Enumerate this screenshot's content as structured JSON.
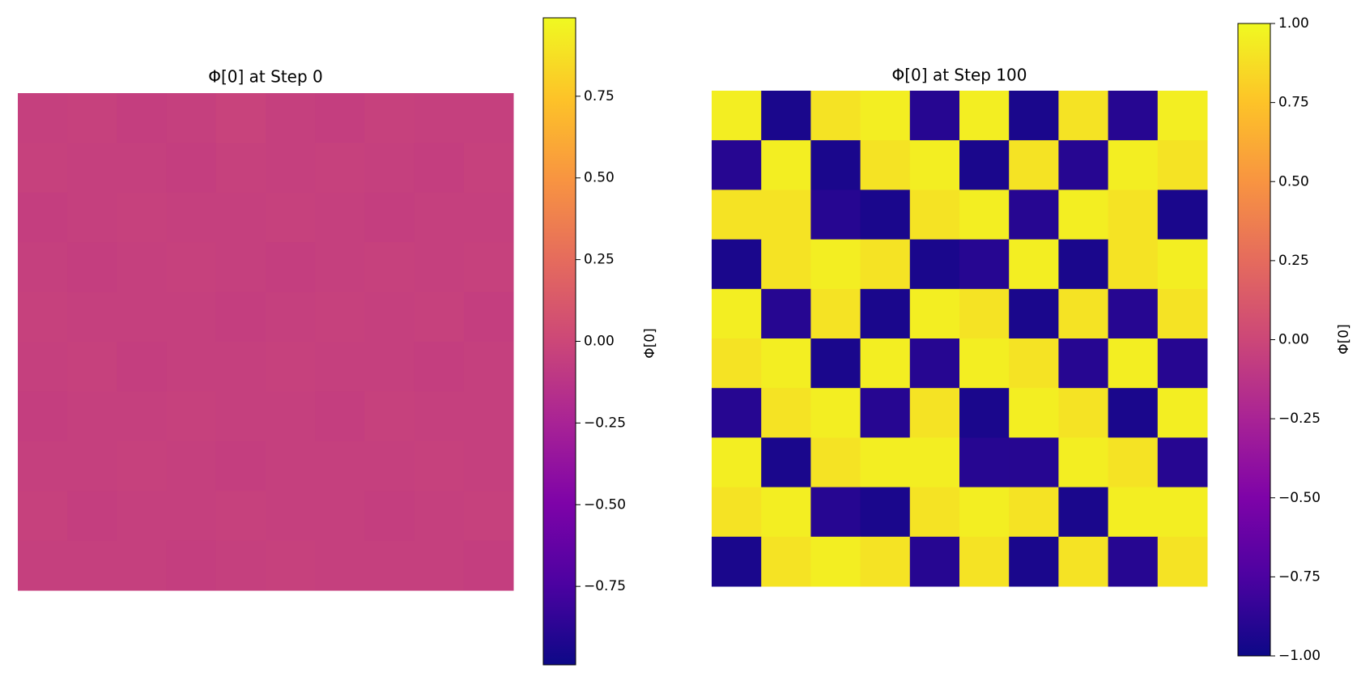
{
  "chart_data": [
    {
      "type": "heatmap",
      "title": "Φ[0] at Step 0",
      "colorbar_label": "Φ[0]",
      "colormap": "plasma",
      "clim": [
        -0.99,
        0.99
      ],
      "cticks": [
        {
          "value": -0.75,
          "label": "−0.75"
        },
        {
          "value": -0.5,
          "label": "−0.50"
        },
        {
          "value": -0.25,
          "label": "−0.25"
        },
        {
          "value": 0,
          "label": "0.00"
        },
        {
          "value": 0.25,
          "label": "0.25"
        },
        {
          "value": 0.5,
          "label": "0.50"
        },
        {
          "value": 0.75,
          "label": "0.75"
        }
      ],
      "z": [
        [
          -0.05,
          -0.04,
          -0.06,
          -0.05,
          -0.03,
          -0.05,
          -0.06,
          -0.04,
          -0.05,
          -0.05
        ],
        [
          -0.04,
          -0.05,
          -0.05,
          -0.06,
          -0.04,
          -0.05,
          -0.04,
          -0.05,
          -0.06,
          -0.04
        ],
        [
          -0.06,
          -0.05,
          -0.04,
          -0.05,
          -0.05,
          -0.04,
          -0.05,
          -0.06,
          -0.05,
          -0.05
        ],
        [
          -0.05,
          -0.06,
          -0.05,
          -0.04,
          -0.05,
          -0.06,
          -0.05,
          -0.04,
          -0.05,
          -0.04
        ],
        [
          -0.04,
          -0.05,
          -0.05,
          -0.05,
          -0.06,
          -0.05,
          -0.04,
          -0.05,
          -0.04,
          -0.06
        ],
        [
          -0.05,
          -0.04,
          -0.06,
          -0.05,
          -0.05,
          -0.04,
          -0.05,
          -0.05,
          -0.06,
          -0.05
        ],
        [
          -0.06,
          -0.05,
          -0.05,
          -0.04,
          -0.05,
          -0.05,
          -0.06,
          -0.04,
          -0.05,
          -0.05
        ],
        [
          -0.05,
          -0.05,
          -0.04,
          -0.05,
          -0.06,
          -0.05,
          -0.05,
          -0.05,
          -0.04,
          -0.05
        ],
        [
          -0.04,
          -0.06,
          -0.05,
          -0.05,
          -0.04,
          -0.05,
          -0.05,
          -0.06,
          -0.05,
          -0.04
        ],
        [
          -0.05,
          -0.05,
          -0.05,
          -0.06,
          -0.05,
          -0.04,
          -0.05,
          -0.05,
          -0.05,
          -0.06
        ]
      ]
    },
    {
      "type": "heatmap",
      "title": "Φ[0] at Step 100",
      "colorbar_label": "Φ[0]",
      "colormap": "plasma",
      "clim": [
        -1,
        1
      ],
      "cticks": [
        {
          "value": -1,
          "label": "−1.00"
        },
        {
          "value": -0.75,
          "label": "−0.75"
        },
        {
          "value": -0.5,
          "label": "−0.50"
        },
        {
          "value": -0.25,
          "label": "−0.25"
        },
        {
          "value": 0,
          "label": "0.00"
        },
        {
          "value": 0.25,
          "label": "0.25"
        },
        {
          "value": 0.5,
          "label": "0.50"
        },
        {
          "value": 0.75,
          "label": "0.75"
        },
        {
          "value": 1,
          "label": "1.00"
        }
      ],
      "z": [
        [
          0.95,
          -0.95,
          0.9,
          0.95,
          -0.9,
          0.95,
          -0.95,
          0.9,
          -0.9,
          0.95
        ],
        [
          -0.9,
          0.95,
          -0.95,
          0.9,
          0.95,
          -0.95,
          0.9,
          -0.9,
          0.95,
          0.9
        ],
        [
          0.9,
          0.9,
          -0.9,
          -0.95,
          0.9,
          0.95,
          -0.9,
          0.95,
          0.9,
          -0.95
        ],
        [
          -0.95,
          0.9,
          0.95,
          0.9,
          -0.95,
          -0.9,
          0.95,
          -0.95,
          0.9,
          0.95
        ],
        [
          0.95,
          -0.9,
          0.9,
          -0.95,
          0.95,
          0.9,
          -0.95,
          0.9,
          -0.9,
          0.9
        ],
        [
          0.9,
          0.95,
          -0.95,
          0.95,
          -0.9,
          0.95,
          0.9,
          -0.9,
          0.95,
          -0.9
        ],
        [
          -0.9,
          0.9,
          0.95,
          -0.9,
          0.9,
          -0.95,
          0.95,
          0.9,
          -0.95,
          0.95
        ],
        [
          0.95,
          -0.95,
          0.9,
          0.95,
          0.95,
          -0.9,
          -0.9,
          0.95,
          0.9,
          -0.9
        ],
        [
          0.9,
          0.95,
          -0.9,
          -0.95,
          0.9,
          0.95,
          0.9,
          -0.95,
          0.95,
          0.95
        ],
        [
          -0.95,
          0.9,
          0.95,
          0.9,
          -0.9,
          0.9,
          -0.95,
          0.9,
          -0.9,
          0.9
        ]
      ]
    }
  ]
}
